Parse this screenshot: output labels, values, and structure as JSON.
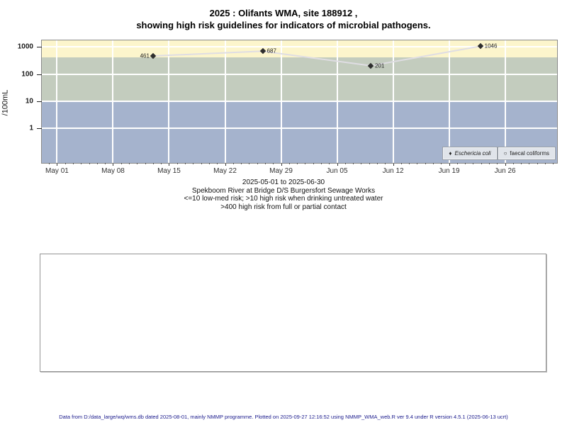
{
  "title": {
    "line1": "2025 : Olifants WMA, site 188912 ,",
    "line2": "showing high risk guidelines for indicators of microbial pathogens."
  },
  "chart_data": {
    "type": "line",
    "title": "2025 : Olifants WMA, site 188912 , showing high risk guidelines for indicators of microbial pathogens.",
    "xlabel": "",
    "ylabel": "/100mL",
    "yscale": "log10",
    "grid": true,
    "ytick_values": [
      1,
      10,
      100,
      1000
    ],
    "ytick_labels": [
      "1",
      "10",
      "100",
      "1000"
    ],
    "ylog_range": [
      -1.26,
      3.234
    ],
    "x_start_date": "2025-05-01",
    "xlim_days": [
      -1.9,
      62.5
    ],
    "xticks": [
      {
        "day": 0,
        "label": "May 01"
      },
      {
        "day": 7,
        "label": "May 08"
      },
      {
        "day": 14,
        "label": "May 15"
      },
      {
        "day": 21,
        "label": "May 22"
      },
      {
        "day": 28,
        "label": "May 29"
      },
      {
        "day": 35,
        "label": "Jun 05"
      },
      {
        "day": 42,
        "label": "Jun 12"
      },
      {
        "day": 49,
        "label": "Jun 19"
      },
      {
        "day": 56,
        "label": "Jun 26"
      }
    ],
    "minor_tick_interval_days": 1,
    "bands": [
      {
        "name": "high-risk-contact",
        "label": ">400 high risk from full or partial contact",
        "from": 400,
        "to": null,
        "color": "#FCF5CC"
      },
      {
        "name": "high-risk-drinking",
        "label": ">10 high risk when drinking untreated water",
        "from": 10,
        "to": 400,
        "color": "#C3CCBE"
      },
      {
        "name": "low-med-risk",
        "label": "<=10 low-med risk",
        "from": null,
        "to": 10,
        "color": "#A5B3CD"
      }
    ],
    "series": [
      {
        "name": "Eschericia coli",
        "marker": "filled-diamond",
        "line_color": "#DFDDE3",
        "marker_color": "#2E2E2E",
        "points": [
          {
            "date": "2025-05-13",
            "day": 12.0,
            "value": 461,
            "label": "461",
            "label_side": "left"
          },
          {
            "date": "2025-05-26",
            "day": 25.7,
            "value": 687,
            "label": "687",
            "label_side": "right"
          },
          {
            "date": "2025-06-09",
            "day": 39.2,
            "value": 201,
            "label": "201",
            "label_side": "right"
          },
          {
            "date": "2025-06-23",
            "day": 52.9,
            "value": 1046,
            "label": "1046",
            "label_side": "right"
          }
        ]
      },
      {
        "name": "faecal coliforms",
        "marker": "open-circle",
        "line_color": "#DFDDE3",
        "marker_color": "#2E2E2E",
        "points": []
      }
    ],
    "legend_position": "bottom-right",
    "legend": [
      {
        "symbol": "♦",
        "symbol_name": "filled-diamond",
        "label": "Eschericia coli",
        "italic": true
      },
      {
        "symbol": "○",
        "symbol_name": "open-circle",
        "label": "faecal coliforms",
        "italic": false
      }
    ]
  },
  "subtitle": {
    "lines": [
      "2025-05-01 to 2025-06-30",
      "Spekboom River at Bridge D/S Burgersfort Sewage Works",
      "<=10 low-med risk; >10 high risk when drinking untreated water",
      ">400 high risk from full or partial contact"
    ]
  },
  "comment_box": {
    "content": ""
  },
  "footer": {
    "text": "Data from D:/data_large/wq/wms.db dated 2025-08-01, mainly NMMP programme. Plotted on 2025-09-27 12:16:52 using NMMP_WMA_web.R ver 9.4 under R version 4.5.1 (2025-06-13 ucrt)"
  }
}
